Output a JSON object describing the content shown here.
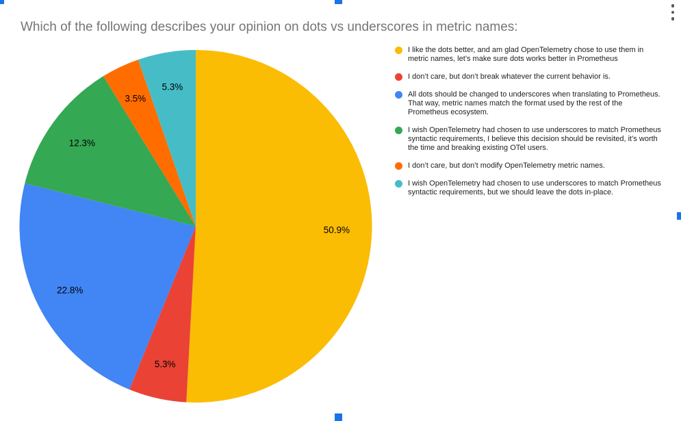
{
  "menu": {
    "more_options": "more-options"
  },
  "selection": {
    "handle_color": "#1a73e8"
  },
  "chart_data": {
    "type": "pie",
    "title": "Which of the following describes your opinion on dots vs underscores in metric names:",
    "legend_position": "right",
    "direction": "clockwise",
    "start_angle_deg": 0,
    "label_radius_ratio": 0.8,
    "slices": [
      {
        "label": "I like the dots better, and am glad OpenTelemetry chose to use them in metric names, let’s make sure dots works better in Prometheus",
        "percent": 50.9,
        "percent_label": "50.9%",
        "color": "#FBBC04"
      },
      {
        "label": "I don’t care, but don’t break whatever the current behavior is.",
        "percent": 5.3,
        "percent_label": "5.3%",
        "color": "#EA4335"
      },
      {
        "label": "All dots should be changed to underscores when translating to Prometheus. That way, metric names match the format used by the rest of the Prometheus ecosystem.",
        "percent": 22.8,
        "percent_label": "22.8%",
        "color": "#4285F4"
      },
      {
        "label": "I wish OpenTelemetry had chosen to use underscores to match Prometheus syntactic requirements, I believe this decision should be revisited, it’s worth the time and breaking existing OTel users.",
        "percent": 12.3,
        "percent_label": "12.3%",
        "color": "#34A853"
      },
      {
        "label": "I don’t care, but don’t modify OpenTelemetry metric names.",
        "percent": 3.5,
        "percent_label": "3.5%",
        "color": "#FF6D01"
      },
      {
        "label": "I wish OpenTelemetry had chosen to use underscores to match Prometheus syntactic requirements, but we should leave the dots in-place.",
        "percent": 5.3,
        "percent_label": "5.3%",
        "color": "#46BDC6"
      }
    ]
  }
}
